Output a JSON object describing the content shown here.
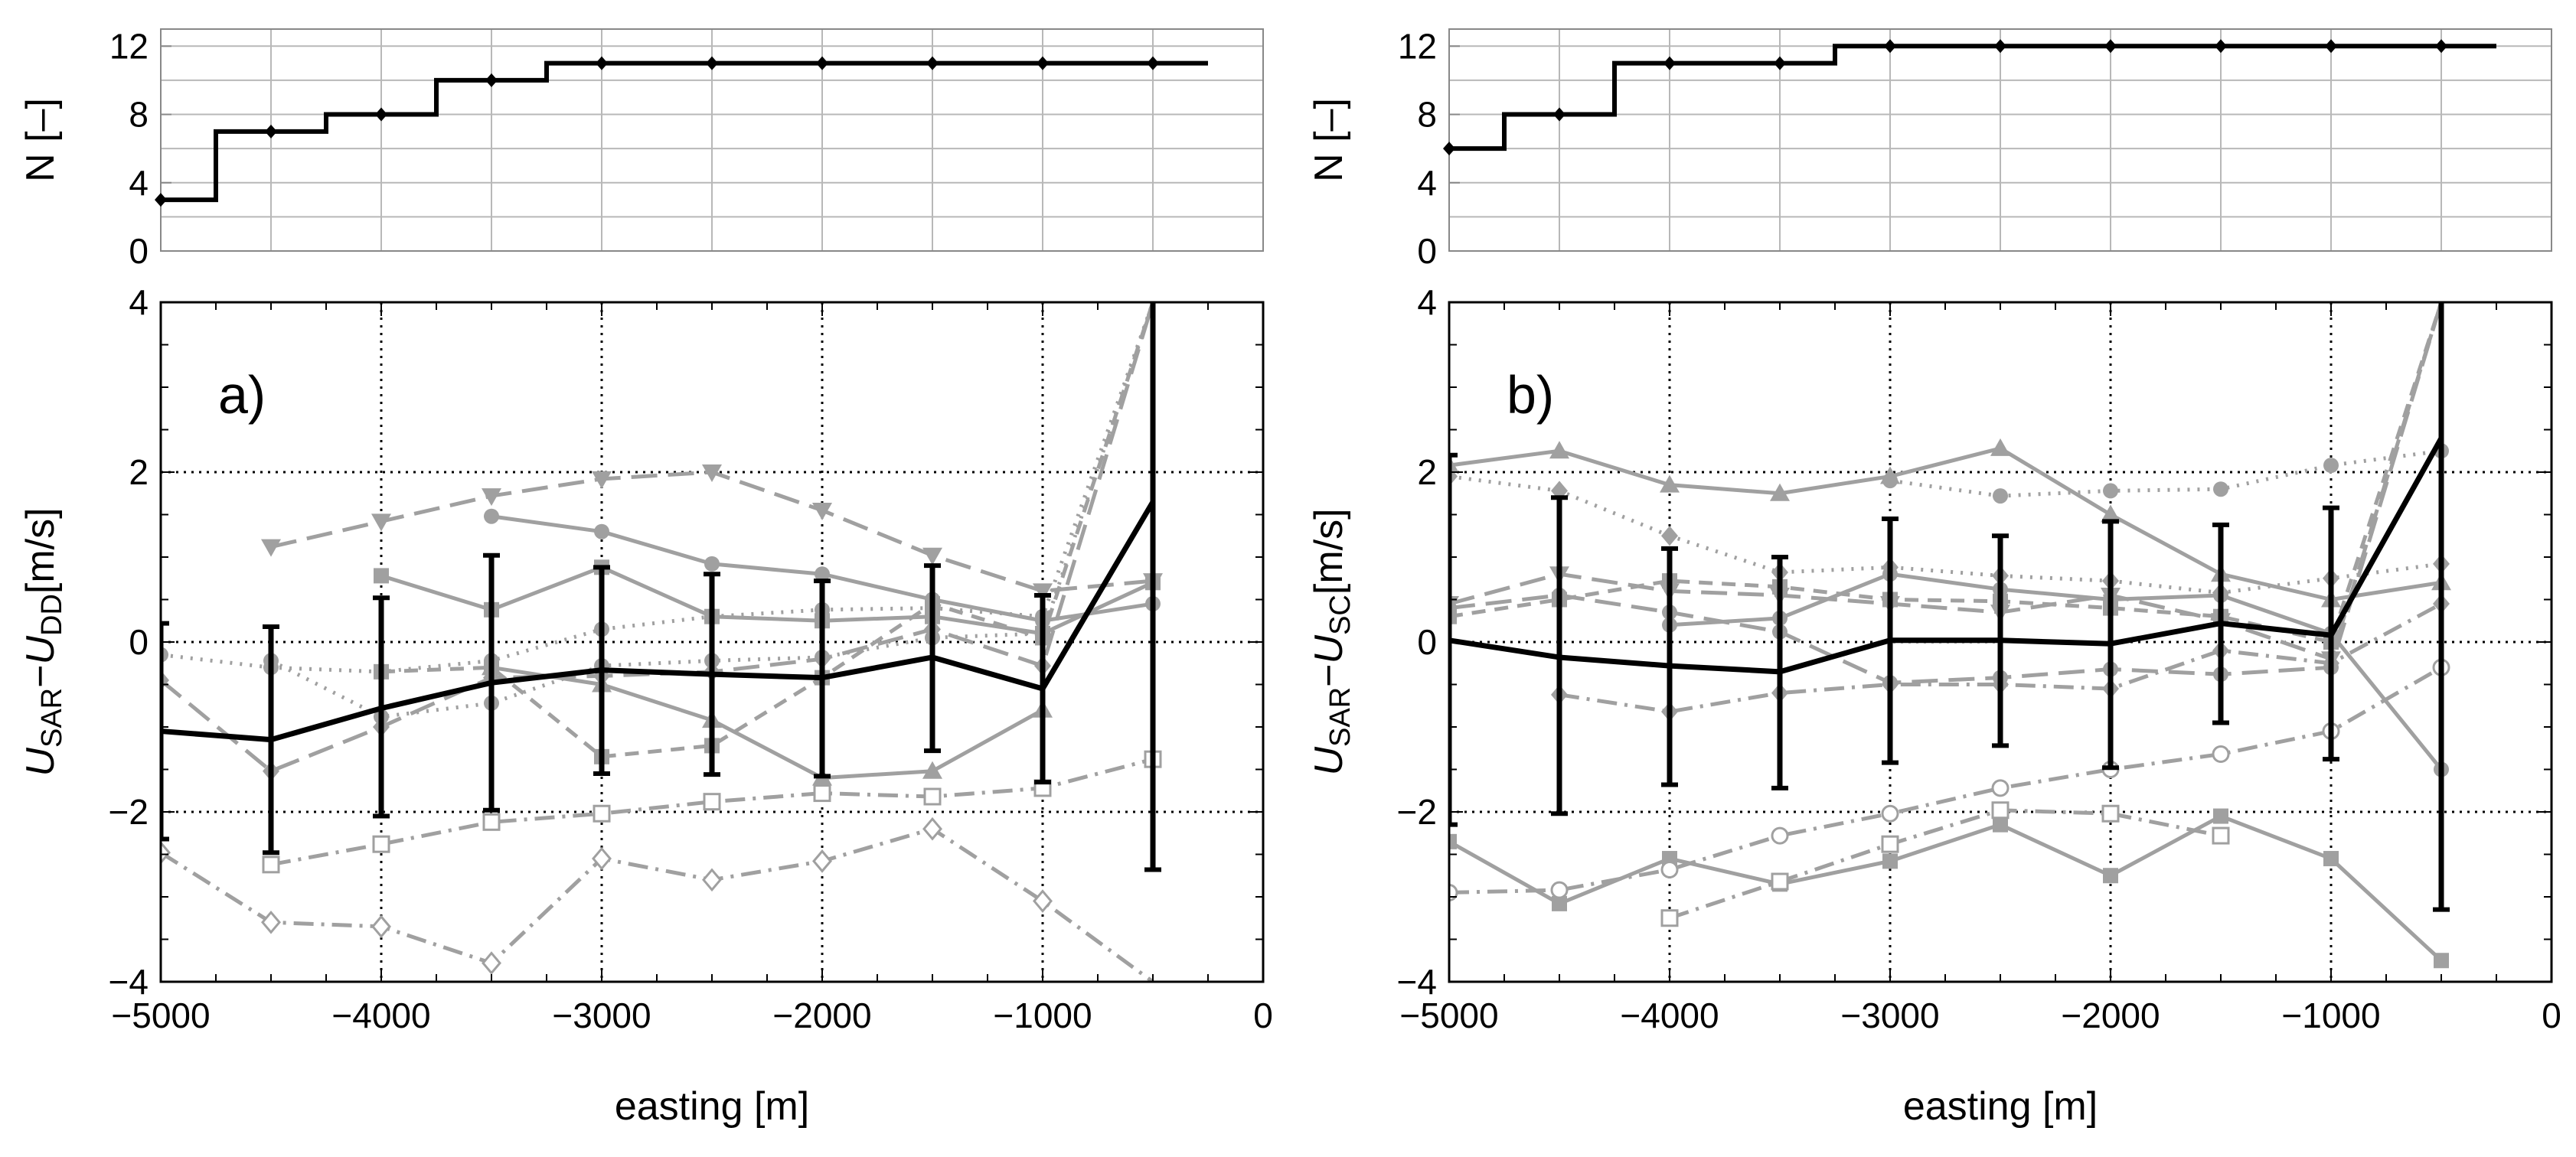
{
  "chart_data": [
    {
      "panel": "a",
      "type": "step",
      "ylabel": "N [–]",
      "xlim": [
        -5000,
        0
      ],
      "ylim": [
        0,
        13
      ],
      "yticks": [
        0,
        4,
        8,
        12
      ],
      "grid": true,
      "x": [
        -5000,
        -4500,
        -4000,
        -3500,
        -3000,
        -2500,
        -2000,
        -1500,
        -1000,
        -500
      ],
      "values": [
        3,
        7,
        8,
        10,
        11,
        11,
        11,
        11,
        11,
        11
      ]
    },
    {
      "panel": "a",
      "type": "line",
      "panel_label": "a)",
      "xlabel": "easting [m]",
      "ylabel_main": "U",
      "ylabel_sub1": "SAR",
      "ylabel_sub2": "DD",
      "ylabel_unit": "[m/s]",
      "xlim": [
        -5000,
        0
      ],
      "ylim": [
        -4,
        4
      ],
      "xticks": [
        -5000,
        -4000,
        -3000,
        -2000,
        -1000,
        0
      ],
      "xtick_labels": [
        "−5000",
        "−4000",
        "−3000",
        "−2000",
        "−1000",
        "0"
      ],
      "yticks": [
        -4,
        -2,
        0,
        2,
        4
      ],
      "ytick_labels": [
        "−4",
        "−2",
        "0",
        "2",
        "4"
      ],
      "grid": "dotted at major ticks",
      "mean": {
        "x": [
          -5000,
          -4500,
          -4000,
          -3500,
          -3000,
          -2500,
          -2000,
          -1500,
          -1000,
          -500
        ],
        "values": [
          -1.05,
          -1.15,
          -0.78,
          -0.48,
          -0.33,
          -0.38,
          -0.42,
          -0.18,
          -0.55,
          1.65
        ],
        "lower": [
          -2.32,
          -2.48,
          -2.05,
          -1.98,
          -1.55,
          -1.56,
          -1.58,
          -1.28,
          -1.65,
          -2.68
        ],
        "upper": [
          0.22,
          0.18,
          0.52,
          1.02,
          0.88,
          0.8,
          0.72,
          0.9,
          0.55,
          5.98
        ]
      },
      "series": [
        {
          "values": [
            null,
            null,
            null,
            -0.3,
            -0.5,
            -0.92,
            -1.6,
            -1.52,
            -0.8,
            null
          ],
          "dash": "solid",
          "marker": "triangle-up"
        },
        {
          "values": [
            null,
            null,
            0.78,
            0.38,
            0.88,
            0.3,
            0.25,
            0.3,
            0.1,
            0.7
          ],
          "dash": "solid",
          "marker": "square"
        },
        {
          "values": [
            null,
            null,
            null,
            1.48,
            1.3,
            0.92,
            0.8,
            0.5,
            0.25,
            0.45
          ],
          "dash": "solid",
          "marker": "circle"
        },
        {
          "values": [
            null,
            1.12,
            1.42,
            1.72,
            1.92,
            2.0,
            1.55,
            1.02,
            0.6,
            0.72
          ],
          "dash": "long-dash",
          "marker": "triangle-down"
        },
        {
          "values": [
            -0.45,
            -1.52,
            -1.0,
            -0.42,
            -0.4,
            -0.35,
            -0.2,
            0.15,
            -0.28,
            4.0
          ],
          "dash": "long-dash",
          "marker": "diamond"
        },
        {
          "values": [
            null,
            null,
            -0.35,
            -0.3,
            -1.35,
            -1.22,
            -0.42,
            0.45,
            0.05,
            4.0
          ],
          "dash": "dashed",
          "marker": "square"
        },
        {
          "values": [
            -0.15,
            -0.3,
            -0.35,
            -0.22,
            0.15,
            0.3,
            0.38,
            0.4,
            0.3,
            4.0
          ],
          "dash": "dotted",
          "marker": "circle"
        },
        {
          "values": [
            null,
            -0.22,
            -0.88,
            -0.72,
            -0.28,
            -0.22,
            -0.18,
            0.05,
            0.1,
            4.0
          ],
          "dash": "dotted",
          "marker": "circle"
        },
        {
          "values": [
            null,
            -2.62,
            -2.38,
            -2.12,
            -2.02,
            -1.88,
            -1.78,
            -1.82,
            -1.72,
            -1.38
          ],
          "dash": "dash-dot",
          "marker": "square-open"
        },
        {
          "values": [
            -2.48,
            -3.3,
            -3.35,
            -3.78,
            -2.55,
            -2.8,
            -2.58,
            -2.2,
            -3.05,
            -4.0
          ],
          "dash": "dash-dot",
          "marker": "diamond-open"
        }
      ]
    },
    {
      "panel": "b",
      "type": "step",
      "ylabel": "N [–]",
      "xlim": [
        -5000,
        0
      ],
      "ylim": [
        0,
        13
      ],
      "yticks": [
        0,
        4,
        8,
        12
      ],
      "grid": true,
      "x": [
        -5000,
        -4500,
        -4000,
        -3500,
        -3000,
        -2500,
        -2000,
        -1500,
        -1000,
        -500
      ],
      "values": [
        6,
        8,
        11,
        11,
        12,
        12,
        12,
        12,
        12,
        12
      ]
    },
    {
      "panel": "b",
      "type": "line",
      "panel_label": "b)",
      "xlabel": "easting [m]",
      "ylabel_main": "U",
      "ylabel_sub1": "SAR",
      "ylabel_sub2": "SC",
      "ylabel_unit": "[m/s]",
      "xlim": [
        -5000,
        0
      ],
      "ylim": [
        -4,
        4
      ],
      "xticks": [
        -5000,
        -4000,
        -3000,
        -2000,
        -1000,
        0
      ],
      "xtick_labels": [
        "−5000",
        "−4000",
        "−3000",
        "−2000",
        "−1000",
        "0"
      ],
      "yticks": [
        -4,
        -2,
        0,
        2,
        4
      ],
      "ytick_labels": [
        "−4",
        "−2",
        "0",
        "2",
        "4"
      ],
      "grid": "dotted at major ticks",
      "mean": {
        "x": [
          -5000,
          -4500,
          -4000,
          -3500,
          -3000,
          -2500,
          -2000,
          -1500,
          -1000,
          -500
        ],
        "values": [
          0.02,
          -0.18,
          -0.28,
          -0.35,
          0.02,
          0.02,
          -0.02,
          0.22,
          0.08,
          2.4
        ],
        "lower": [
          -2.15,
          -2.02,
          -1.68,
          -1.72,
          -1.42,
          -1.22,
          -1.48,
          -0.95,
          -1.38,
          -3.15
        ],
        "upper": [
          2.2,
          1.7,
          1.1,
          1.0,
          1.45,
          1.25,
          1.42,
          1.38,
          1.58,
          7.95
        ]
      },
      "series": [
        {
          "values": [
            2.08,
            2.25,
            1.85,
            1.75,
            1.95,
            2.28,
            1.5,
            0.8,
            0.5,
            0.7
          ],
          "dash": "solid",
          "marker": "triangle-up"
        },
        {
          "values": [
            -2.35,
            -3.08,
            -2.55,
            -2.85,
            -2.58,
            -2.15,
            -2.75,
            -2.05,
            -2.55,
            -3.75
          ],
          "dash": "solid",
          "marker": "square"
        },
        {
          "values": [
            null,
            null,
            0.2,
            0.28,
            0.8,
            0.62,
            0.5,
            0.55,
            0.1,
            -1.5
          ],
          "dash": "solid",
          "marker": "circle"
        },
        {
          "values": [
            1.95,
            1.78,
            1.25,
            0.82,
            0.88,
            0.78,
            0.72,
            0.58,
            0.75,
            0.92
          ],
          "dash": "dotted",
          "marker": "diamond"
        },
        {
          "values": [
            null,
            null,
            null,
            null,
            1.9,
            1.72,
            1.78,
            1.8,
            2.08,
            2.25
          ],
          "dash": "dotted",
          "marker": "circle"
        },
        {
          "values": [
            0.45,
            0.8,
            0.6,
            0.55,
            0.45,
            0.35,
            0.55,
            0.25,
            -0.2,
            4.0
          ],
          "dash": "long-dash",
          "marker": "triangle-down"
        },
        {
          "values": [
            0.3,
            0.5,
            0.72,
            0.65,
            0.5,
            0.48,
            0.4,
            0.3,
            0.0,
            4.0
          ],
          "dash": "dashed",
          "marker": "square"
        },
        {
          "values": [
            0.4,
            0.55,
            0.35,
            0.12,
            -0.48,
            -0.42,
            -0.32,
            -0.38,
            -0.3,
            4.0
          ],
          "dash": "long-dash",
          "marker": "circle"
        },
        {
          "values": [
            null,
            -0.62,
            -0.82,
            -0.6,
            -0.5,
            -0.5,
            -0.55,
            -0.1,
            -0.25,
            0.45
          ],
          "dash": "dash-dot",
          "marker": "diamond"
        },
        {
          "values": [
            -2.95,
            -2.92,
            -2.68,
            -2.28,
            -2.02,
            -1.72,
            -1.5,
            -1.32,
            -1.05,
            -0.3
          ],
          "dash": "dash-dot",
          "marker": "circle-open"
        },
        {
          "values": [
            null,
            null,
            -3.25,
            -2.82,
            -2.38,
            -1.98,
            -2.02,
            -2.28,
            null,
            null
          ],
          "dash": "dash-dot",
          "marker": "square-open"
        }
      ]
    }
  ]
}
